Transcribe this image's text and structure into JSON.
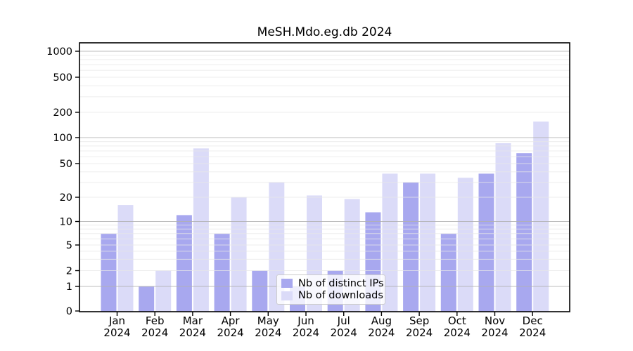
{
  "title": "MeSH.Mdo.eg.db 2024",
  "colors": {
    "distinct_ips": "#a8a8ef",
    "downloads": "#dbdbf8",
    "major_grid": "#b0b0b0",
    "minor_grid": "#e7e7e7",
    "axis": "#000000",
    "legend_border": "#cccccc",
    "background": "#ffffff"
  },
  "legend": {
    "items": [
      {
        "label": "Nb of distinct IPs",
        "series": "distinct_ips"
      },
      {
        "label": "Nb of downloads",
        "series": "downloads"
      }
    ]
  },
  "x_axis": {
    "months": [
      "Jan",
      "Feb",
      "Mar",
      "Apr",
      "May",
      "Jun",
      "Jul",
      "Aug",
      "Sep",
      "Oct",
      "Nov",
      "Dec"
    ],
    "year": "2024"
  },
  "y_axis": {
    "ticks": [
      0,
      1,
      2,
      5,
      10,
      20,
      50,
      100,
      200,
      500,
      1000
    ]
  },
  "chart_data": {
    "type": "bar",
    "title": "MeSH.Mdo.eg.db 2024",
    "categories": [
      "Jan 2024",
      "Feb 2024",
      "Mar 2024",
      "Apr 2024",
      "May 2024",
      "Jun 2024",
      "Jul 2024",
      "Aug 2024",
      "Sep 2024",
      "Oct 2024",
      "Nov 2024",
      "Dec 2024"
    ],
    "series": [
      {
        "name": "Nb of distinct IPs",
        "color": "#a8a8ef",
        "values": [
          7,
          1,
          12,
          7,
          2,
          1,
          2,
          13,
          30,
          7,
          38,
          66
        ]
      },
      {
        "name": "Nb of downloads",
        "color": "#dbdbf8",
        "values": [
          16,
          2,
          75,
          20,
          30,
          21,
          19,
          38,
          38,
          34,
          86,
          155
        ]
      }
    ],
    "ylabel": "",
    "xlabel": "",
    "yscale": "log-with-zero",
    "ylim": [
      0,
      1250
    ],
    "yticks": [
      0,
      1,
      2,
      5,
      10,
      20,
      50,
      100,
      200,
      500,
      1000
    ],
    "grid": true,
    "legend_position": "inside-bottom-center"
  }
}
